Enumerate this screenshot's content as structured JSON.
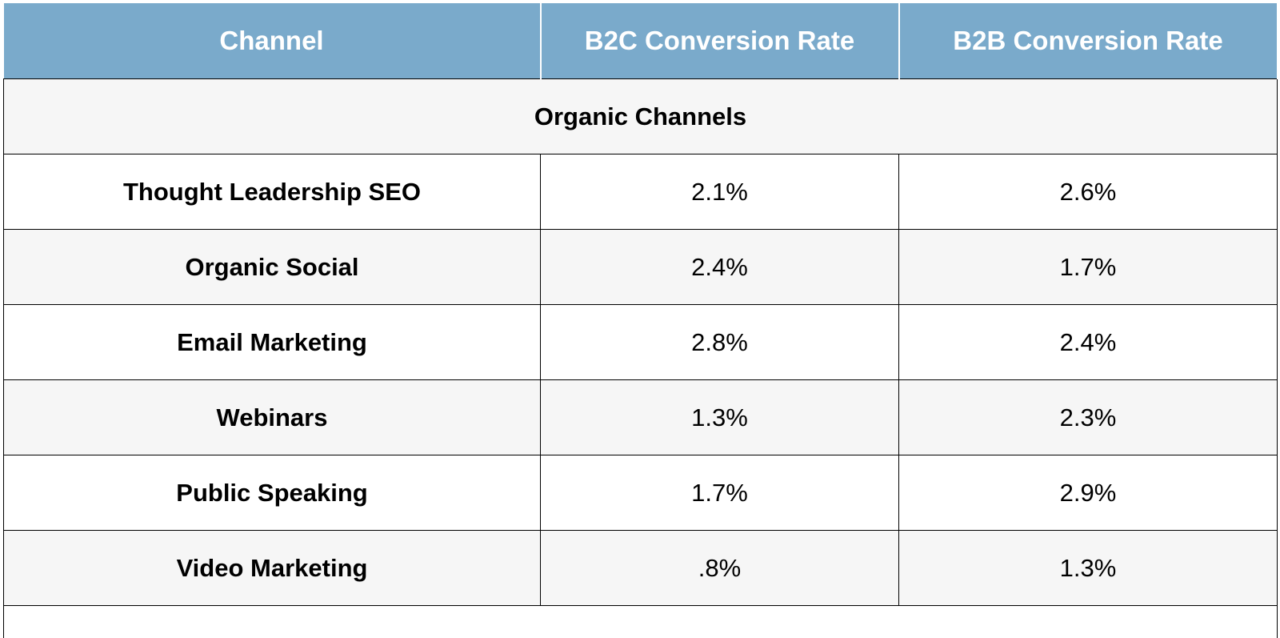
{
  "table": {
    "headers": [
      "Channel",
      "B2C Conversion Rate",
      "B2B Conversion Rate"
    ],
    "section_title": "Organic Channels",
    "rows": [
      {
        "channel": "Thought Leadership SEO",
        "b2c": "2.1%",
        "b2b": "2.6%"
      },
      {
        "channel": "Organic Social",
        "b2c": "2.4%",
        "b2b": "1.7%"
      },
      {
        "channel": "Email Marketing",
        "b2c": "2.8%",
        "b2b": "2.4%"
      },
      {
        "channel": "Webinars",
        "b2c": "1.3%",
        "b2b": "2.3%"
      },
      {
        "channel": "Public Speaking",
        "b2c": "1.7%",
        "b2b": "2.9%"
      },
      {
        "channel": "Video Marketing",
        "b2c": ".8%",
        "b2b": "1.3%"
      }
    ],
    "colors": {
      "header_bg": "#7aaacb",
      "header_text": "#ffffff",
      "stripe_bg": "#f6f6f6",
      "border": "#000000"
    }
  }
}
